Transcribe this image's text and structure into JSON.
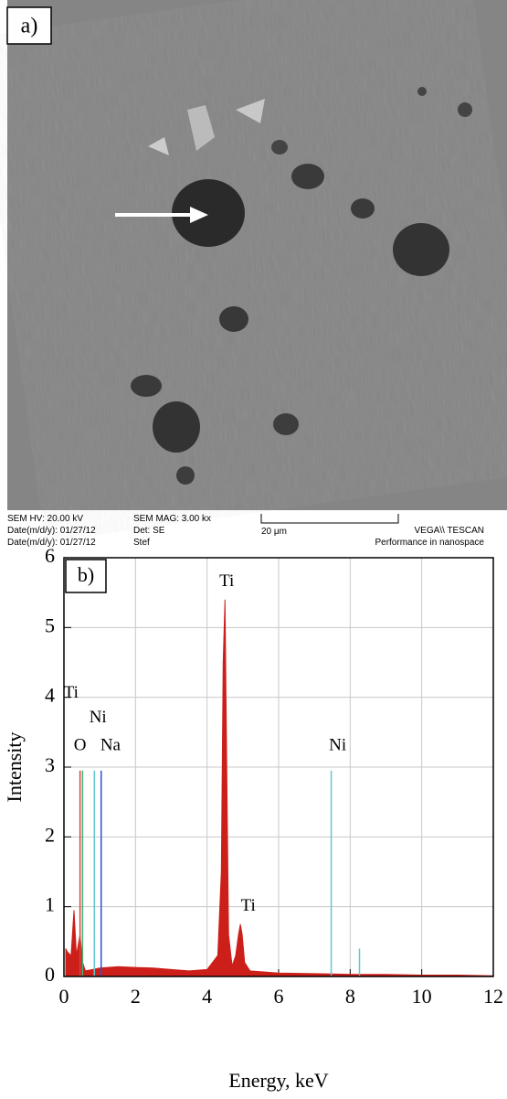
{
  "sem": {
    "panel_label": "a)",
    "hv": "SEM HV: 20.00 kV",
    "date1": "Date(m/d/y): 01/27/12",
    "date2": "Date(m/d/y): 01/27/12",
    "mag": "SEM MAG: 3.00 kx",
    "det": "Det: SE",
    "user": "Stef",
    "scale": "20 μm",
    "brand": "VEGA\\\\ TESCAN",
    "slogan": "Performance in nanospace"
  },
  "chart_data": {
    "type": "area",
    "panel_label": "b)",
    "x_label": "Energy, keV",
    "y_label": "Intensity",
    "xlim": [
      0,
      12
    ],
    "ylim": [
      0,
      6
    ],
    "xticks": [
      0,
      2,
      4,
      6,
      8,
      10,
      12
    ],
    "yticks": [
      0,
      1,
      2,
      3,
      4,
      5,
      6
    ],
    "grid": true,
    "series": [
      {
        "color": "#cc1f1a",
        "x": [
          0.05,
          0.1,
          0.2,
          0.28,
          0.35,
          0.45,
          0.52,
          0.6,
          0.8,
          1.0,
          1.5,
          2.0,
          2.5,
          3.0,
          3.5,
          4.0,
          4.3,
          4.4,
          4.45,
          4.5,
          4.55,
          4.6,
          4.7,
          4.8,
          4.88,
          4.93,
          4.98,
          5.05,
          5.2,
          6,
          7,
          8,
          9,
          10,
          11,
          12
        ],
        "values": [
          0.4,
          0.35,
          0.3,
          0.95,
          0.3,
          0.6,
          0.2,
          0.08,
          0.1,
          0.12,
          0.14,
          0.13,
          0.12,
          0.1,
          0.08,
          0.1,
          0.3,
          1.5,
          4.5,
          5.4,
          3.0,
          0.6,
          0.15,
          0.3,
          0.6,
          0.75,
          0.6,
          0.2,
          0.08,
          0.05,
          0.04,
          0.03,
          0.03,
          0.02,
          0.02,
          0.01
        ]
      }
    ],
    "element_lines": {
      "x": [
        0.45,
        0.52,
        0.85,
        1.04,
        7.47,
        8.26
      ],
      "values": [
        2.95,
        2.95,
        2.95,
        2.95,
        2.95,
        0.4
      ],
      "colors": [
        "#e04040",
        "#3cb371",
        "#5fc7d0",
        "#3050d0",
        "#5fc7d0",
        "#5fc7d0"
      ]
    },
    "annotations": [
      "Ti",
      "Ni",
      "O",
      "Na",
      "Ti",
      "Ni",
      "Ti"
    ]
  }
}
